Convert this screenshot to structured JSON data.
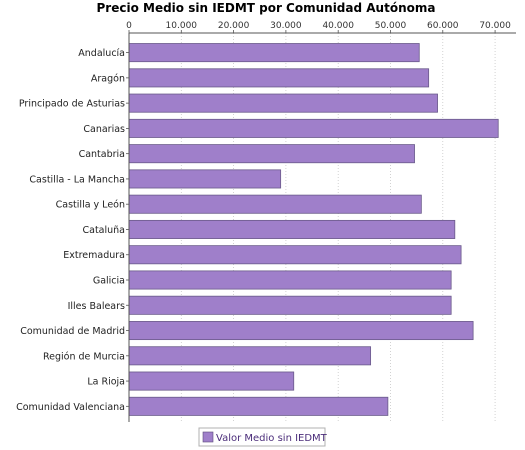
{
  "chart_data": {
    "type": "bar",
    "orientation": "horizontal",
    "title": "Precio Medio sin IEDMT por Comunidad Autónoma",
    "categories": [
      "Andalucía",
      "Aragón",
      "Principado de Asturias",
      "Canarias",
      "Cantabria",
      "Castilla - La Mancha",
      "Castilla y León",
      "Cataluña",
      "Extremadura",
      "Galicia",
      "Illes Balears",
      "Comunidad de Madrid",
      "Región de Murcia",
      "La Rioja",
      "Comunidad Valenciana"
    ],
    "series": [
      {
        "name": "Valor Medio sin IEDMT",
        "color": "#9f7fca",
        "values": [
          55500,
          57300,
          59000,
          70600,
          54600,
          29000,
          55900,
          62300,
          63500,
          61600,
          61600,
          65800,
          46200,
          31500,
          49500
        ]
      }
    ],
    "xlim": [
      0,
      74000
    ],
    "xticks": [
      0,
      10000,
      20000,
      30000,
      40000,
      50000,
      60000,
      70000
    ],
    "xtick_labels": [
      "0",
      "10.000",
      "20.000",
      "30.000",
      "40.000",
      "50.000",
      "60.000",
      "70.000"
    ],
    "x_axis_position": "top",
    "grid": "vertical dotted",
    "legend_position": "bottom-center"
  }
}
